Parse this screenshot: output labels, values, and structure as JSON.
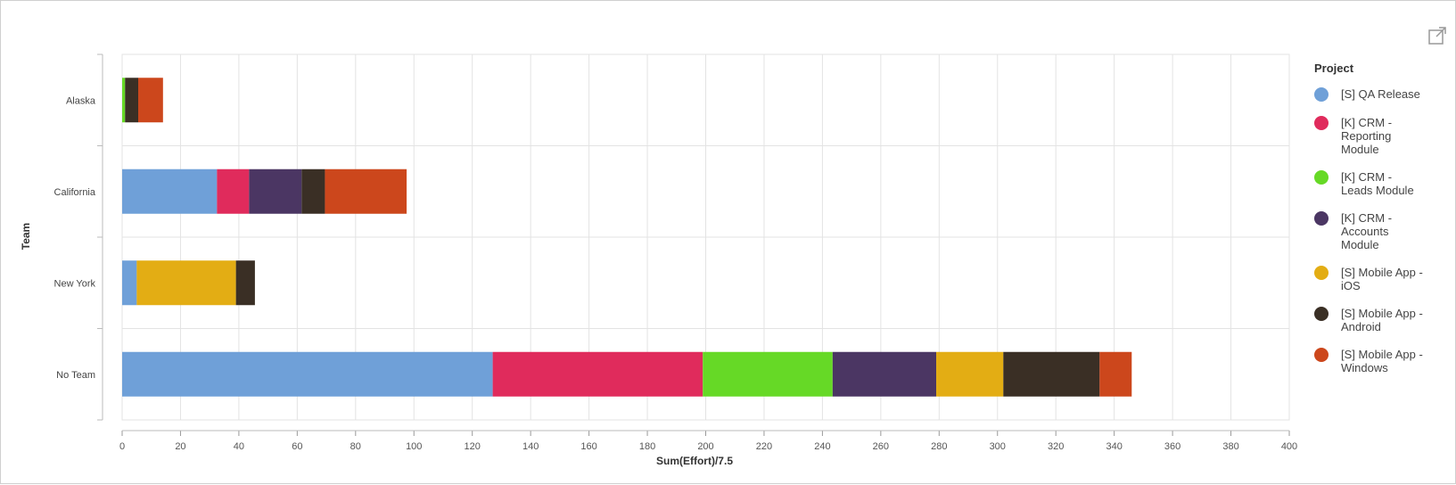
{
  "chart_data": {
    "type": "bar",
    "orientation": "horizontal",
    "stacked": true,
    "categories": [
      "Alaska",
      "California",
      "New York",
      "No Team"
    ],
    "xlabel": "Sum(Effort)/7.5",
    "ylabel": "Team",
    "xlim": [
      0,
      400
    ],
    "xticks": [
      0,
      20,
      40,
      60,
      80,
      100,
      120,
      140,
      160,
      180,
      200,
      220,
      240,
      260,
      280,
      300,
      320,
      340,
      360,
      380,
      400
    ],
    "grid": true,
    "legend_title": "Project",
    "legend_position": "right",
    "series": [
      {
        "name": "[S] QA Release",
        "color": "#6fa0d8",
        "values": [
          0,
          32.5,
          5,
          127
        ]
      },
      {
        "name": "[K] CRM - Reporting Module",
        "color": "#e02b5c",
        "values": [
          0,
          11,
          0,
          72
        ]
      },
      {
        "name": "[K] CRM - Leads Module",
        "color": "#66d926",
        "values": [
          1,
          0,
          0,
          44.5
        ]
      },
      {
        "name": "[K] CRM - Accounts Module",
        "color": "#4b3663",
        "values": [
          0,
          18,
          0,
          35.5
        ]
      },
      {
        "name": "[S] Mobile App - iOS",
        "color": "#e3ad14",
        "values": [
          0,
          0,
          34,
          23
        ]
      },
      {
        "name": "[S] Mobile App - Android",
        "color": "#3a2f25",
        "values": [
          4.5,
          8,
          6.5,
          33
        ]
      },
      {
        "name": "[S] Mobile App - Windows",
        "color": "#cc471c",
        "values": [
          8.5,
          28,
          0,
          11
        ]
      }
    ]
  },
  "toolbar": {
    "open_icon": "external-link-icon"
  }
}
